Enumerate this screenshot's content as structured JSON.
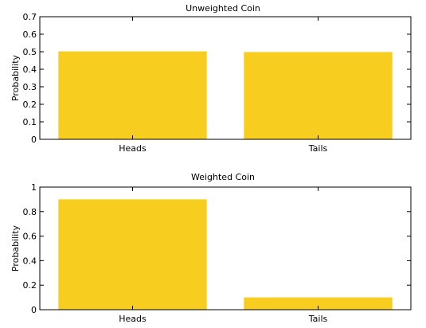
{
  "colors": {
    "bar": "#f7cd1f",
    "axis": "#000000",
    "background": "#ffffff"
  },
  "chart_data": [
    {
      "type": "bar",
      "title": "Unweighted Coin",
      "xlabel": "",
      "ylabel": "Probability",
      "categories": [
        "Heads",
        "Tails"
      ],
      "values": [
        0.502,
        0.498
      ],
      "ylim": [
        0,
        0.7
      ],
      "yticks": [
        "0",
        "0.1",
        "0.2",
        "0.3",
        "0.4",
        "0.5",
        "0.6",
        "0.7"
      ],
      "grid": false,
      "legend": "none"
    },
    {
      "type": "bar",
      "title": "Weighted Coin",
      "xlabel": "",
      "ylabel": "Probability",
      "categories": [
        "Heads",
        "Tails"
      ],
      "values": [
        0.9,
        0.1
      ],
      "ylim": [
        0,
        1
      ],
      "yticks": [
        "0",
        "0.2",
        "0.4",
        "0.6",
        "0.8",
        "1"
      ],
      "grid": false,
      "legend": "none"
    }
  ]
}
